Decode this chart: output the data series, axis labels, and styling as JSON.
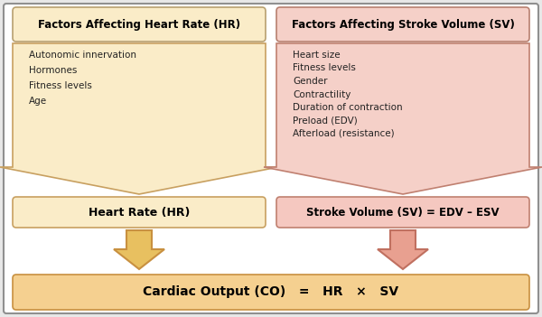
{
  "background_color": "#e8e8e8",
  "left_header_text": "Factors Affecting Heart Rate (HR)",
  "right_header_text": "Factors Affecting Stroke Volume (SV)",
  "left_header_fill": "#faecc8",
  "left_header_edge": "#b8a070",
  "right_header_fill": "#f5d0c8",
  "right_header_edge": "#b88070",
  "left_factors": [
    "Autonomic innervation",
    "Hormones",
    "Fitness levels",
    "Age"
  ],
  "right_factors": [
    "Heart size",
    "Fitness levels",
    "Gender",
    "Contractility",
    "Duration of contraction",
    "Preload (EDV)",
    "Afterload (resistance)"
  ],
  "left_arrow_fill": "#faecc8",
  "left_arrow_edge": "#c8a060",
  "right_arrow_fill": "#f5d0c8",
  "right_arrow_edge": "#c08070",
  "left_result_text": "Heart Rate (HR)",
  "right_result_text": "Stroke Volume (SV) = EDV – ESV",
  "left_result_fill": "#faecc8",
  "left_result_edge": "#c8a060",
  "right_result_fill": "#f5c8c0",
  "right_result_edge": "#c08070",
  "bottom_fill": "#f5d090",
  "bottom_edge": "#c89040",
  "bottom_text": "Cardiac Output (CO)   =   HR   ×   SV",
  "small_arrow_left_fill": "#e8c060",
  "small_arrow_left_edge": "#c89040",
  "small_arrow_right_fill": "#e8a090",
  "small_arrow_right_edge": "#c07060",
  "text_color_dark": "#000000",
  "outer_border_color": "#909090"
}
